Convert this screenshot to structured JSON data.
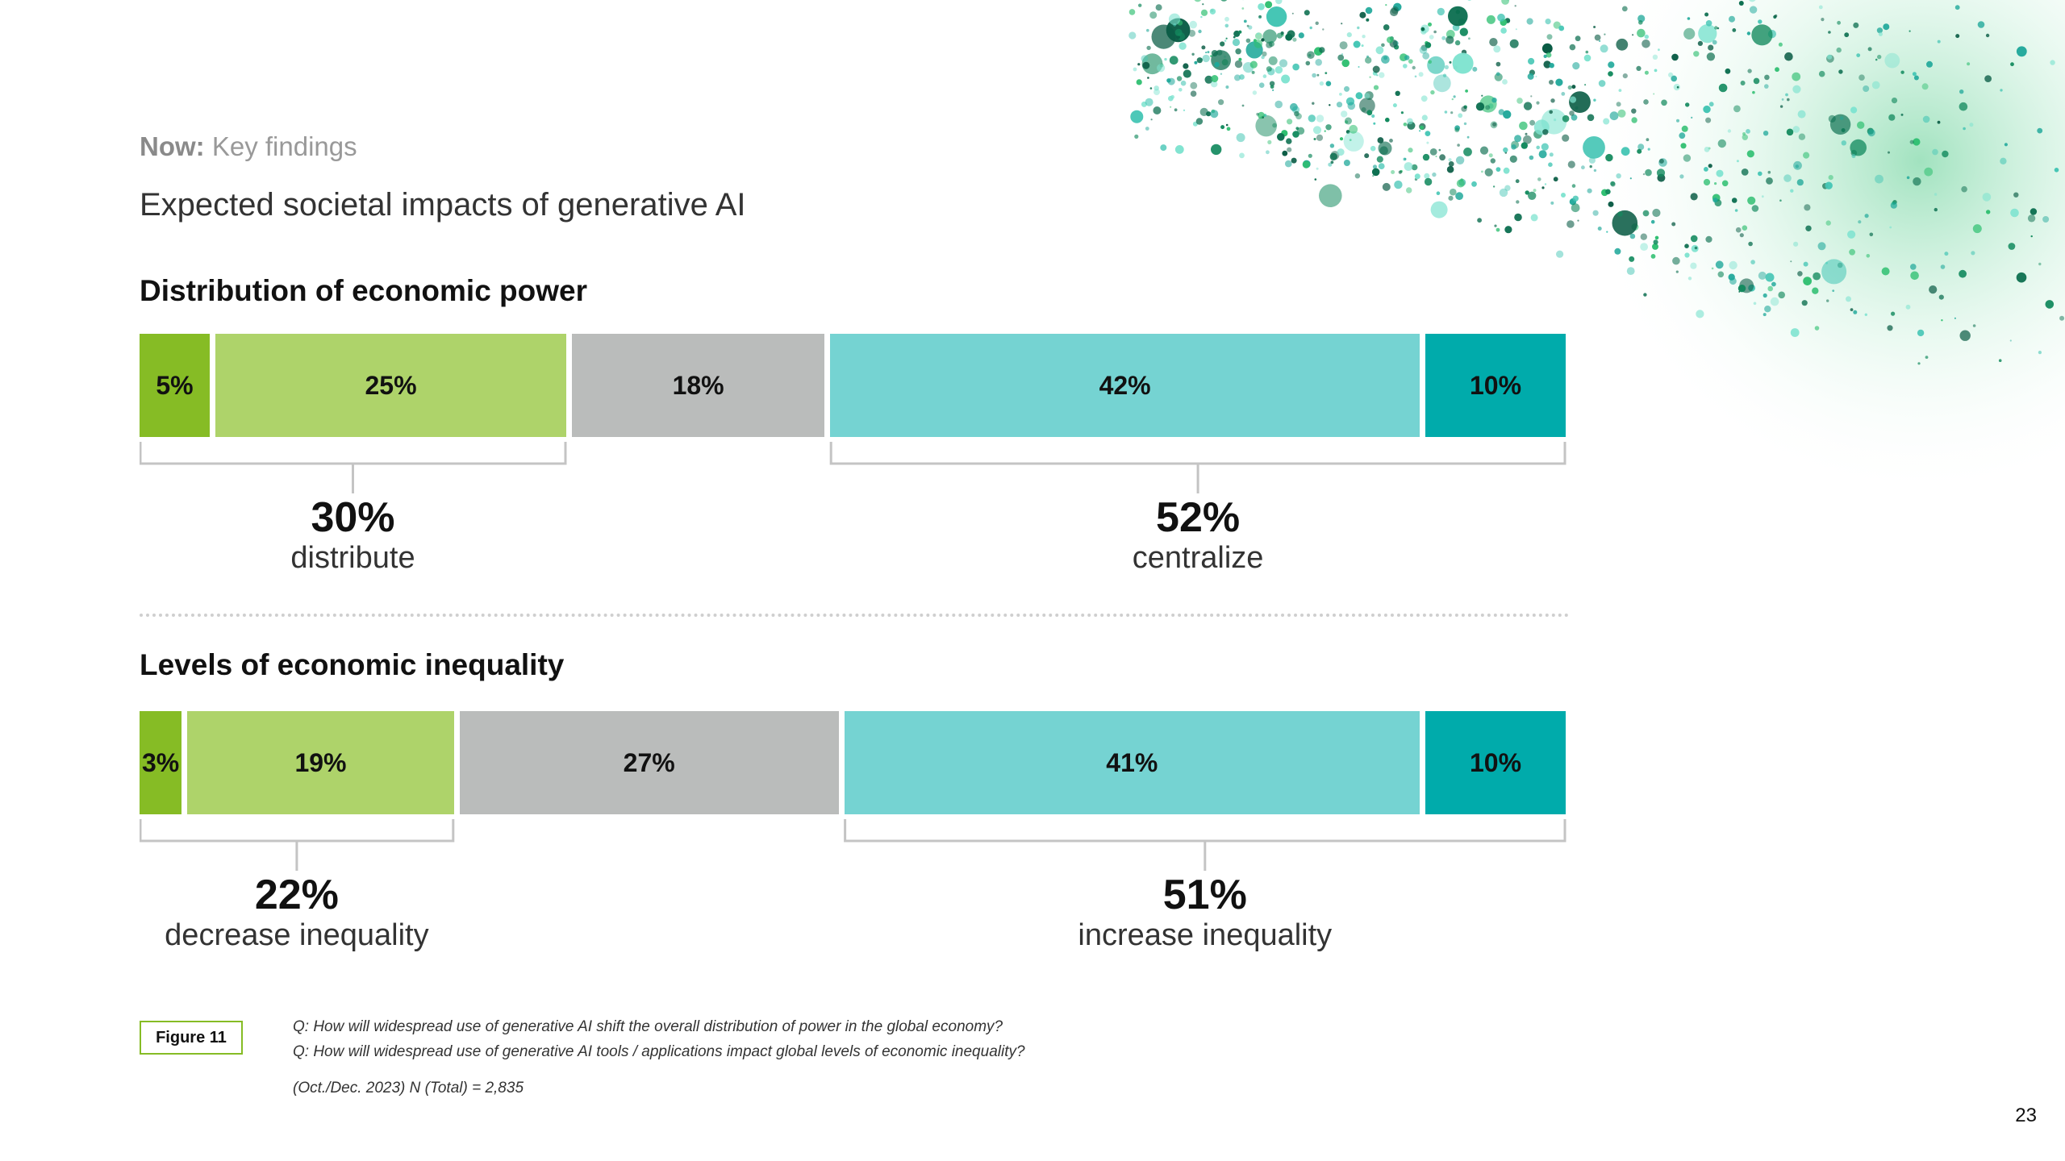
{
  "header": {
    "kicker_bold": "Now:",
    "kicker_rest": "Key findings",
    "title": "Expected societal impacts of generative AI"
  },
  "colors": {
    "dark_green": "#86bc25",
    "light_green": "#aed36a",
    "gray": "#babcbb",
    "light_teal": "#75d3d2",
    "teal": "#00abab"
  },
  "chart_data": [
    {
      "type": "bar",
      "orientation": "horizontal-stacked",
      "title": "Distribution of economic power",
      "segments": [
        {
          "label": "5%",
          "value": 5,
          "color": "#86bc25"
        },
        {
          "label": "25%",
          "value": 25,
          "color": "#aed36a"
        },
        {
          "label": "18%",
          "value": 18,
          "color": "#babcbb"
        },
        {
          "label": "42%",
          "value": 42,
          "color": "#75d3d2"
        },
        {
          "label": "10%",
          "value": 10,
          "color": "#00abab"
        }
      ],
      "summaries": [
        {
          "value": "30%",
          "label": "distribute",
          "from": 0,
          "to": 1
        },
        {
          "value": "52%",
          "label": "centralize",
          "from": 3,
          "to": 4
        }
      ]
    },
    {
      "type": "bar",
      "orientation": "horizontal-stacked",
      "title": "Levels of economic inequality",
      "segments": [
        {
          "label": "3%",
          "value": 3,
          "color": "#86bc25"
        },
        {
          "label": "19%",
          "value": 19,
          "color": "#aed36a"
        },
        {
          "label": "27%",
          "value": 27,
          "color": "#babcbb"
        },
        {
          "label": "41%",
          "value": 41,
          "color": "#75d3d2"
        },
        {
          "label": "10%",
          "value": 10,
          "color": "#00abab"
        }
      ],
      "summaries": [
        {
          "value": "22%",
          "label": "decrease inequality",
          "from": 0,
          "to": 1
        },
        {
          "value": "51%",
          "label": "increase inequality",
          "from": 3,
          "to": 4
        }
      ]
    }
  ],
  "footer": {
    "figure_label": "Figure 11",
    "q1": "Q: How will widespread use of generative AI shift the overall distribution of power in the global economy?",
    "q2": "Q: How will widespread use of generative AI tools / applications impact global levels of economic inequality?",
    "base": "(Oct./Dec. 2023) N (Total) = 2,835",
    "page_number": "23"
  }
}
